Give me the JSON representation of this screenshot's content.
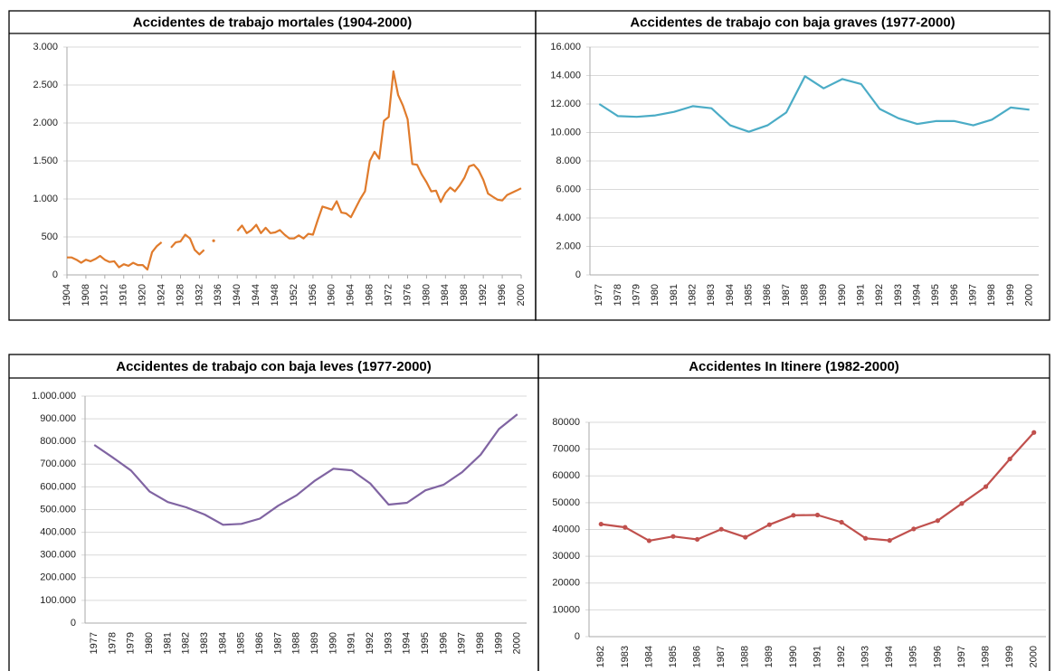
{
  "chart_data": [
    {
      "type": "line",
      "title": "Accidentes de trabajo mortales (1904-2000)",
      "color": "#e07b2c",
      "x": [
        1904,
        1905,
        1906,
        1907,
        1908,
        1909,
        1910,
        1911,
        1912,
        1913,
        1914,
        1915,
        1916,
        1917,
        1918,
        1919,
        1920,
        1921,
        1922,
        1923,
        1924,
        1925,
        1926,
        1927,
        1928,
        1929,
        1930,
        1931,
        1932,
        1933,
        1934,
        1935,
        1936,
        1937,
        1938,
        1939,
        1940,
        1941,
        1942,
        1943,
        1944,
        1945,
        1946,
        1947,
        1948,
        1949,
        1950,
        1951,
        1952,
        1953,
        1954,
        1955,
        1956,
        1957,
        1958,
        1959,
        1960,
        1961,
        1962,
        1963,
        1964,
        1965,
        1966,
        1967,
        1968,
        1969,
        1970,
        1971,
        1972,
        1973,
        1974,
        1975,
        1976,
        1977,
        1978,
        1979,
        1980,
        1981,
        1982,
        1983,
        1984,
        1985,
        1986,
        1987,
        1988,
        1989,
        1990,
        1991,
        1992,
        1993,
        1994,
        1995,
        1996,
        1997,
        1998,
        1999,
        2000
      ],
      "values": [
        230,
        230,
        200,
        160,
        200,
        180,
        210,
        250,
        200,
        170,
        180,
        100,
        140,
        120,
        160,
        130,
        130,
        70,
        300,
        380,
        430,
        null,
        360,
        430,
        440,
        530,
        480,
        330,
        270,
        330,
        null,
        450,
        null,
        null,
        null,
        null,
        580,
        650,
        550,
        590,
        660,
        550,
        620,
        550,
        560,
        590,
        530,
        480,
        480,
        520,
        480,
        540,
        530,
        720,
        900,
        880,
        860,
        970,
        820,
        810,
        760,
        880,
        1000,
        1100,
        1500,
        1620,
        1530,
        2030,
        2080,
        2680,
        2370,
        2230,
        2050,
        1460,
        1450,
        1320,
        1220,
        1100,
        1110,
        960,
        1080,
        1150,
        1100,
        1180,
        1280,
        1430,
        1450,
        1380,
        1250,
        1070,
        1030,
        990,
        980,
        1050,
        1080,
        1110,
        1140
      ],
      "xlim": [
        1904,
        2000
      ],
      "xticks": [
        1904,
        1908,
        1912,
        1916,
        1920,
        1924,
        1928,
        1932,
        1936,
        1940,
        1944,
        1948,
        1952,
        1956,
        1960,
        1964,
        1968,
        1972,
        1976,
        1980,
        1984,
        1988,
        1992,
        1996,
        2000
      ],
      "ylim": [
        0,
        3000
      ],
      "yticks": [
        0,
        500,
        {
          "value": 1000,
          "label": "1.000"
        },
        {
          "value": 1500,
          "label": "1.500"
        },
        {
          "value": 2000,
          "label": "2.000"
        },
        {
          "value": 2500,
          "label": "2.500"
        },
        {
          "value": 3000,
          "label": "3.000"
        }
      ],
      "grid": true,
      "markers": false
    },
    {
      "type": "line",
      "title": "Accidentes de trabajo con baja graves (1977-2000)",
      "color": "#4bacc6",
      "categories": [
        "1977",
        "1978",
        "1979",
        "1980",
        "1981",
        "1982",
        "1983",
        "1984",
        "1985",
        "1986",
        "1987",
        "1988",
        "1989",
        "1990",
        "1991",
        "1992",
        "1993",
        "1994",
        "1995",
        "1996",
        "1997",
        "1998",
        "1999",
        "2000"
      ],
      "values": [
        12000,
        11150,
        11100,
        11200,
        11450,
        11850,
        11700,
        10500,
        10050,
        10500,
        11400,
        13950,
        13100,
        13750,
        13400,
        11650,
        11000,
        10600,
        10800,
        10800,
        10500,
        10900,
        11750,
        11600
      ],
      "ylim": [
        0,
        16000
      ],
      "yticks": [
        0,
        {
          "value": 2000,
          "label": "2.000"
        },
        {
          "value": 4000,
          "label": "4.000"
        },
        {
          "value": 6000,
          "label": "6.000"
        },
        {
          "value": 8000,
          "label": "8.000"
        },
        {
          "value": 10000,
          "label": "10.000"
        },
        {
          "value": 12000,
          "label": "12.000"
        },
        {
          "value": 14000,
          "label": "14.000"
        },
        {
          "value": 16000,
          "label": "16.000"
        }
      ],
      "grid": true,
      "markers": false
    },
    {
      "type": "line",
      "title": "Accidentes de trabajo con baja leves (1977-2000)",
      "color": "#8064a2",
      "categories": [
        "1977",
        "1978",
        "1979",
        "1980",
        "1981",
        "1982",
        "1983",
        "1984",
        "1985",
        "1986",
        "1987",
        "1988",
        "1989",
        "1990",
        "1991",
        "1992",
        "1993",
        "1994",
        "1995",
        "1996",
        "1997",
        "1998",
        "1999",
        "2000"
      ],
      "values": [
        785000,
        730000,
        672000,
        580000,
        533000,
        510000,
        478000,
        433000,
        437000,
        460000,
        517000,
        563000,
        628000,
        680000,
        673000,
        615000,
        522000,
        530000,
        585000,
        610000,
        665000,
        742000,
        855000,
        920000
      ],
      "ylim": [
        0,
        1000000
      ],
      "yticks": [
        0,
        {
          "value": 100000,
          "label": "100.000"
        },
        {
          "value": 200000,
          "label": "200.000"
        },
        {
          "value": 300000,
          "label": "300.000"
        },
        {
          "value": 400000,
          "label": "400.000"
        },
        {
          "value": 500000,
          "label": "500.000"
        },
        {
          "value": 600000,
          "label": "600.000"
        },
        {
          "value": 700000,
          "label": "700.000"
        },
        {
          "value": 800000,
          "label": "800.000"
        },
        {
          "value": 900000,
          "label": "900.000"
        },
        {
          "value": 1000000,
          "label": "1.000.000"
        }
      ],
      "grid": true,
      "markers": false
    },
    {
      "type": "line",
      "title": "Accidentes In Itinere (1982-2000)",
      "color": "#c0504d",
      "categories": [
        "1982",
        "1983",
        "1984",
        "1985",
        "1986",
        "1987",
        "1988",
        "1989",
        "1990",
        "1991",
        "1992",
        "1993",
        "1994",
        "1995",
        "1996",
        "1997",
        "1998",
        "1999",
        "2000"
      ],
      "values": [
        42000,
        40800,
        35800,
        37400,
        36300,
        40100,
        37100,
        41800,
        45300,
        45400,
        42700,
        36700,
        35900,
        40200,
        43300,
        49700,
        56000,
        66300,
        76200
      ],
      "ylim": [
        0,
        80000
      ],
      "yticks": [
        0,
        10000,
        20000,
        30000,
        40000,
        50000,
        60000,
        70000,
        80000
      ],
      "grid": true,
      "markers": true
    }
  ]
}
